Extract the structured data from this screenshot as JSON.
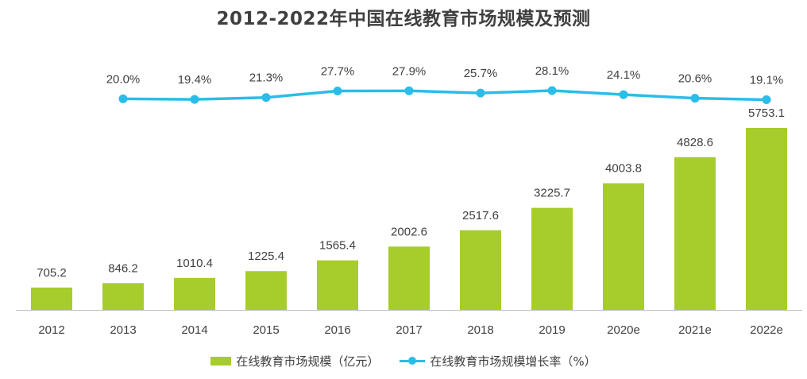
{
  "title": "2012-2022年中国在线教育市场规模及预测",
  "colors": {
    "bar": "#a6cd2b",
    "line": "#2bbde8",
    "axis": "#bfbfbf",
    "text": "#404040"
  },
  "legend": {
    "bar_label": "在线教育市场规模（亿元）",
    "line_label": "在线教育市场规模增长率（%）"
  },
  "chart_data": {
    "type": "bar",
    "title": "2012-2022年中国在线教育市场规模及预测",
    "categories": [
      "2012",
      "2013",
      "2014",
      "2015",
      "2016",
      "2017",
      "2018",
      "2019",
      "2020e",
      "2021e",
      "2022e"
    ],
    "series": [
      {
        "name": "在线教育市场规模（亿元）",
        "type": "bar",
        "values": [
          705.2,
          846.2,
          1010.4,
          1225.4,
          1565.4,
          2002.6,
          2517.6,
          3225.7,
          4003.8,
          4828.6,
          5753.1
        ],
        "labels": [
          "705.2",
          "846.2",
          "1010.4",
          "1225.4",
          "1565.4",
          "2002.6",
          "2517.6",
          "3225.7",
          "4003.8",
          "4828.6",
          "5753.1"
        ]
      },
      {
        "name": "在线教育市场规模增长率（%）",
        "type": "line",
        "values": [
          null,
          20.0,
          19.4,
          21.3,
          27.7,
          27.9,
          25.7,
          28.1,
          24.1,
          20.6,
          19.1
        ],
        "labels": [
          "",
          "20.0%",
          "19.4%",
          "21.3%",
          "27.7%",
          "27.9%",
          "25.7%",
          "28.1%",
          "24.1%",
          "20.6%",
          "19.1%"
        ]
      }
    ],
    "grid": false,
    "legend_position": "bottom"
  }
}
